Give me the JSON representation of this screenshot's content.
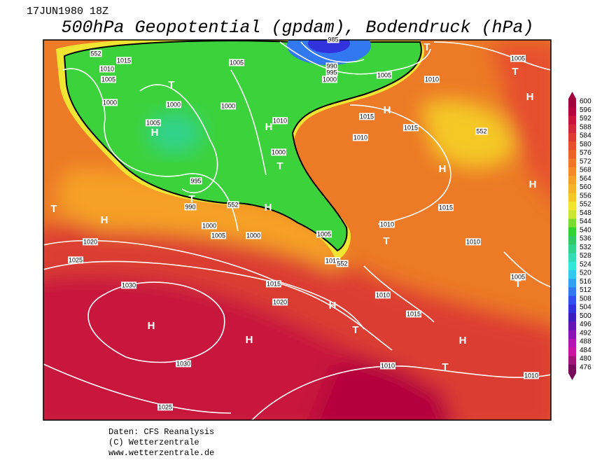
{
  "header": {
    "date": "17JUN1980 18Z",
    "title": "500hPa Geopotential (gpdam), Bodendruck (hPa)"
  },
  "map_labels": [
    "552",
    "1015",
    "1010",
    "1005",
    "1000",
    "T",
    "1000",
    "1005",
    "H",
    "1000",
    "1005",
    "985",
    "990",
    "995",
    "1000",
    "1005",
    "1010",
    "T",
    "1005",
    "T",
    "H",
    "H",
    "1015",
    "1015",
    "1010",
    "H",
    "1010",
    "552",
    "1000",
    "T",
    "H",
    "H",
    "995",
    "T",
    "990",
    "552",
    "H",
    "1015",
    "T",
    "H",
    "1000",
    "1005",
    "1000",
    "1005",
    "1010",
    "T",
    "1010",
    "1020",
    "1025",
    "1010",
    "552",
    "1015",
    "1005",
    "T",
    "1030",
    "1010",
    "1020",
    "H",
    "1015",
    "H",
    "T",
    "H",
    "H",
    "1030",
    "1010",
    "T",
    "1010",
    "1025"
  ],
  "colorbar": {
    "levels": [
      600,
      596,
      592,
      588,
      584,
      580,
      576,
      572,
      568,
      564,
      560,
      556,
      552,
      548,
      544,
      540,
      536,
      532,
      528,
      524,
      520,
      516,
      512,
      508,
      504,
      500,
      496,
      492,
      488,
      484,
      480,
      476
    ],
    "colors": [
      "#a0003c",
      "#b4003c",
      "#c8143c",
      "#d2283c",
      "#dc3c32",
      "#e6502d",
      "#eb6428",
      "#f07828",
      "#f58c28",
      "#f5a028",
      "#f5b428",
      "#f5c828",
      "#f0e632",
      "#c8e632",
      "#78dc32",
      "#32d232",
      "#32c864",
      "#32d28c",
      "#32dcb4",
      "#32e6dc",
      "#32c8f0",
      "#32a0f0",
      "#3278f0",
      "#3250f0",
      "#3232dc",
      "#3c1ebe",
      "#6414b4",
      "#8c14b4",
      "#b414b4",
      "#c814a0",
      "#a01478",
      "#780a5a"
    ]
  },
  "footer": {
    "source": "Daten: CFS Reanalysis",
    "copyright": "(C) Wetterzentrale",
    "url": "www.wetterzentrale.de"
  }
}
